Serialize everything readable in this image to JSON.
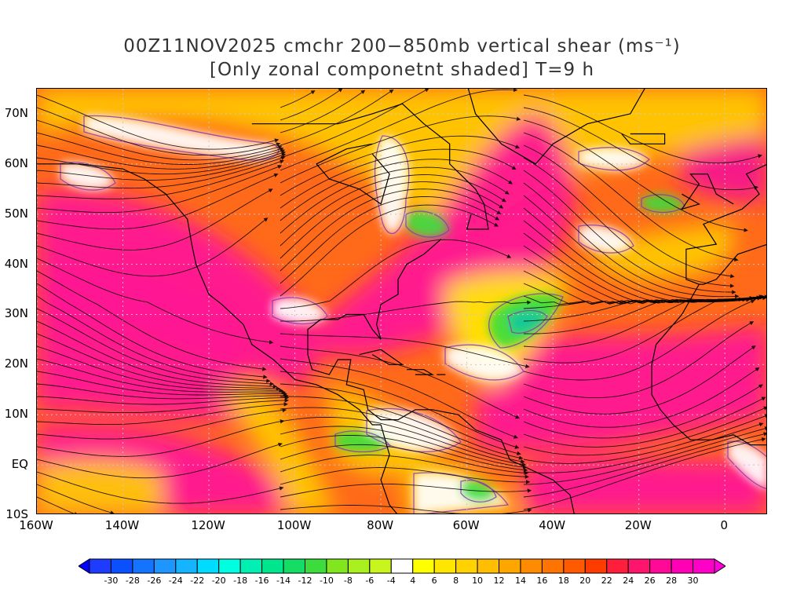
{
  "title": {
    "line1": "00Z11NOV2025 cmchr 200−850mb vertical shear (ms⁻¹)",
    "line2": "[Only zonal componetnt shaded] T=9 h"
  },
  "map": {
    "lat_range": [
      -10,
      75
    ],
    "lon_range": [
      -160,
      10
    ],
    "lat_ticks": [
      {
        "value": 70,
        "label": "70N"
      },
      {
        "value": 60,
        "label": "60N"
      },
      {
        "value": 50,
        "label": "50N"
      },
      {
        "value": 40,
        "label": "40N"
      },
      {
        "value": 30,
        "label": "30N"
      },
      {
        "value": 20,
        "label": "20N"
      },
      {
        "value": 10,
        "label": "10N"
      },
      {
        "value": 0,
        "label": "EQ"
      },
      {
        "value": -10,
        "label": "10S"
      }
    ],
    "lon_ticks": [
      {
        "value": -160,
        "label": "160W"
      },
      {
        "value": -140,
        "label": "140W"
      },
      {
        "value": -120,
        "label": "120W"
      },
      {
        "value": -100,
        "label": "100W"
      },
      {
        "value": -80,
        "label": "80W"
      },
      {
        "value": -60,
        "label": "60W"
      },
      {
        "value": -40,
        "label": "40W"
      },
      {
        "value": -20,
        "label": "20W"
      },
      {
        "value": 0,
        "label": "0"
      }
    ]
  },
  "colorbar": {
    "labels": [
      "-30",
      "-28",
      "-26",
      "-24",
      "-22",
      "-20",
      "-18",
      "-16",
      "-14",
      "-12",
      "-10",
      "-8",
      "-6",
      "-4",
      "4",
      "6",
      "8",
      "10",
      "12",
      "14",
      "16",
      "18",
      "20",
      "22",
      "24",
      "26",
      "28",
      "30"
    ],
    "colors": [
      "#1e3cff",
      "#0a50ff",
      "#1473ff",
      "#1e96ff",
      "#14b4ff",
      "#00dcff",
      "#00ffe1",
      "#00f0b4",
      "#00e68c",
      "#14dc64",
      "#3cdc3c",
      "#82e61e",
      "#aaf01e",
      "#c8f51e",
      "#ffffff",
      "#ffff00",
      "#ffe600",
      "#ffd200",
      "#ffbe00",
      "#ffa500",
      "#ff8c00",
      "#ff7300",
      "#ff5a00",
      "#ff3c00",
      "#ff1e3c",
      "#ff146e",
      "#ff0a96",
      "#ff00b4",
      "#ff00c8"
    ],
    "left_arrow_color": "#0000ff",
    "right_arrow_color": "#ff00dc"
  },
  "field_colors": {
    "strong": "#ff1493",
    "strong2": "#f5148c",
    "medium": "#ff6a1a",
    "medium2": "#ff8c00",
    "weak": "#ffc800",
    "yellow": "#ffe600",
    "calm": "#ffffff",
    "east": "#3cdc3c",
    "east2": "#14c8a0",
    "contour": "#8b3ca8",
    "streamline": "#000000",
    "grid": "#c8c8c8"
  }
}
